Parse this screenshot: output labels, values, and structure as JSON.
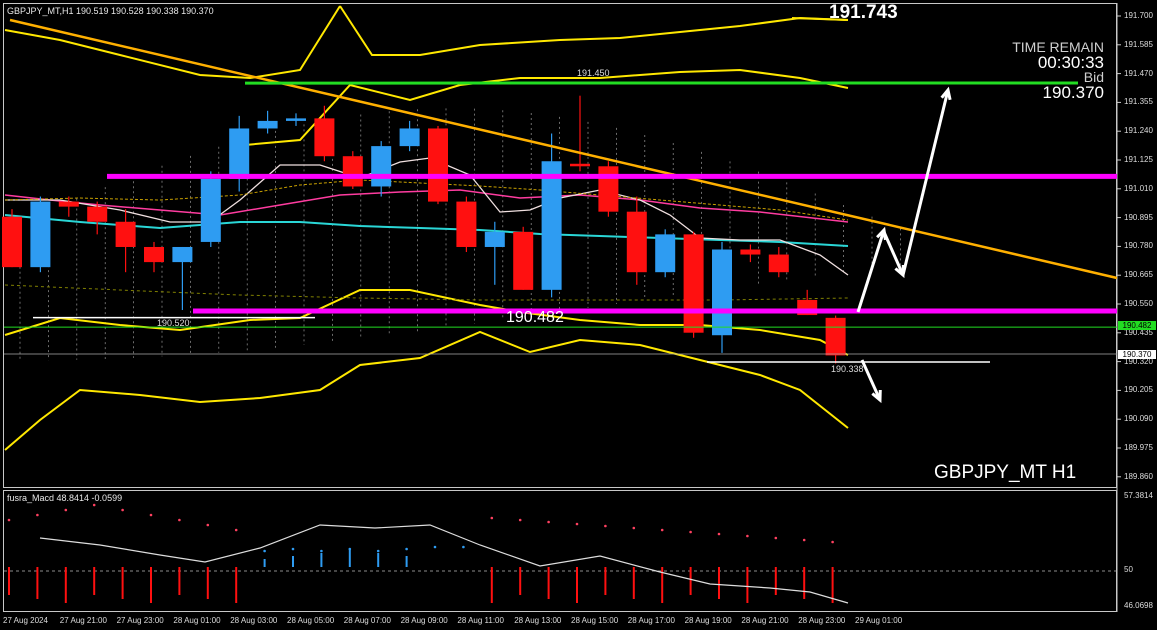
{
  "chart_header": "GBPJPY_MT,H1  190.519 190.528 190.338 190.370",
  "top_price": "191.743",
  "time_remain": {
    "label": "TIME REMAIN",
    "value": "00:30:33",
    "bid_label": "Bid",
    "bid_value": "190.370"
  },
  "symbol": "GBPJPY_MT H1",
  "level_labels": {
    "green_line": "191.450",
    "left_line": "190.520",
    "center": "190.482",
    "low_line": "190.338"
  },
  "price_axis": [
    "191.700",
    "191.585",
    "191.470",
    "191.355",
    "191.240",
    "191.125",
    "191.010",
    "190.895",
    "190.780",
    "190.665",
    "190.550",
    "190.435",
    "190.320",
    "190.205",
    "190.090",
    "189.975",
    "189.860"
  ],
  "price_tags": {
    "green": "190.482",
    "bid": "190.370"
  },
  "macd": {
    "label": "fusra_Macd 48.8414  -0.0599",
    "axis": [
      "57.3814",
      "50",
      "46.0698"
    ]
  },
  "time_axis": [
    "27 Aug 2024",
    "27 Aug 21:00",
    "27 Aug 23:00",
    "28 Aug 01:00",
    "28 Aug 03:00",
    "28 Aug 05:00",
    "28 Aug 07:00",
    "28 Aug 09:00",
    "28 Aug 11:00",
    "28 Aug 13:00",
    "28 Aug 15:00",
    "28 Aug 17:00",
    "28 Aug 19:00",
    "28 Aug 21:00",
    "28 Aug 23:00",
    "29 Aug 01:00"
  ],
  "colors": {
    "bull": "#2e9cf2",
    "bear": "#ff1010",
    "magenta": "#ff00ff",
    "green": "#22dd22",
    "orange": "#ffb000",
    "yellow": "#ffe800"
  },
  "chart_data": {
    "type": "candlestick",
    "title": "GBPJPY_MT H1",
    "candles": [
      {
        "o": 190.92,
        "h": 190.95,
        "l": 190.72,
        "c": 190.72
      },
      {
        "o": 190.72,
        "h": 191.0,
        "l": 190.7,
        "c": 190.98
      },
      {
        "o": 190.98,
        "h": 191.0,
        "l": 190.92,
        "c": 190.96
      },
      {
        "o": 190.96,
        "h": 190.98,
        "l": 190.85,
        "c": 190.9
      },
      {
        "o": 190.9,
        "h": 190.95,
        "l": 190.7,
        "c": 190.8
      },
      {
        "o": 190.8,
        "h": 190.82,
        "l": 190.7,
        "c": 190.74
      },
      {
        "o": 190.74,
        "h": 190.8,
        "l": 190.55,
        "c": 190.8
      },
      {
        "o": 190.82,
        "h": 191.1,
        "l": 190.8,
        "c": 191.07
      },
      {
        "o": 191.07,
        "h": 191.32,
        "l": 191.02,
        "c": 191.27
      },
      {
        "o": 191.27,
        "h": 191.34,
        "l": 191.25,
        "c": 191.3
      },
      {
        "o": 191.3,
        "h": 191.33,
        "l": 191.28,
        "c": 191.31
      },
      {
        "o": 191.31,
        "h": 191.36,
        "l": 191.14,
        "c": 191.16
      },
      {
        "o": 191.16,
        "h": 191.18,
        "l": 191.03,
        "c": 191.04
      },
      {
        "o": 191.04,
        "h": 191.22,
        "l": 191.0,
        "c": 191.2
      },
      {
        "o": 191.2,
        "h": 191.3,
        "l": 191.18,
        "c": 191.27
      },
      {
        "o": 191.27,
        "h": 191.28,
        "l": 190.97,
        "c": 190.98
      },
      {
        "o": 190.98,
        "h": 191.0,
        "l": 190.78,
        "c": 190.8
      },
      {
        "o": 190.8,
        "h": 190.9,
        "l": 190.65,
        "c": 190.86
      },
      {
        "o": 190.86,
        "h": 190.88,
        "l": 190.63,
        "c": 190.63
      },
      {
        "o": 190.63,
        "h": 191.25,
        "l": 190.6,
        "c": 191.14
      },
      {
        "o": 191.13,
        "h": 191.4,
        "l": 191.1,
        "c": 191.12
      },
      {
        "o": 191.12,
        "h": 191.14,
        "l": 190.92,
        "c": 190.94
      },
      {
        "o": 190.94,
        "h": 191.0,
        "l": 190.65,
        "c": 190.7
      },
      {
        "o": 190.7,
        "h": 190.87,
        "l": 190.68,
        "c": 190.85
      },
      {
        "o": 190.85,
        "h": 190.86,
        "l": 190.44,
        "c": 190.46
      },
      {
        "o": 190.45,
        "h": 190.82,
        "l": 190.38,
        "c": 190.79
      },
      {
        "o": 190.79,
        "h": 190.81,
        "l": 190.74,
        "c": 190.77
      },
      {
        "o": 190.77,
        "h": 190.8,
        "l": 190.68,
        "c": 190.7
      },
      {
        "o": 190.59,
        "h": 190.63,
        "l": 190.53,
        "c": 190.53
      },
      {
        "o": 190.519,
        "h": 190.528,
        "l": 190.338,
        "c": 190.37
      }
    ],
    "horizontal_levels": [
      191.45,
      191.08,
      190.52,
      190.482,
      190.338
    ],
    "ylim": [
      189.86,
      191.72
    ],
    "macd": {
      "label": "fusra_Macd",
      "ylim": [
        46.0698,
        57.3814
      ]
    }
  }
}
